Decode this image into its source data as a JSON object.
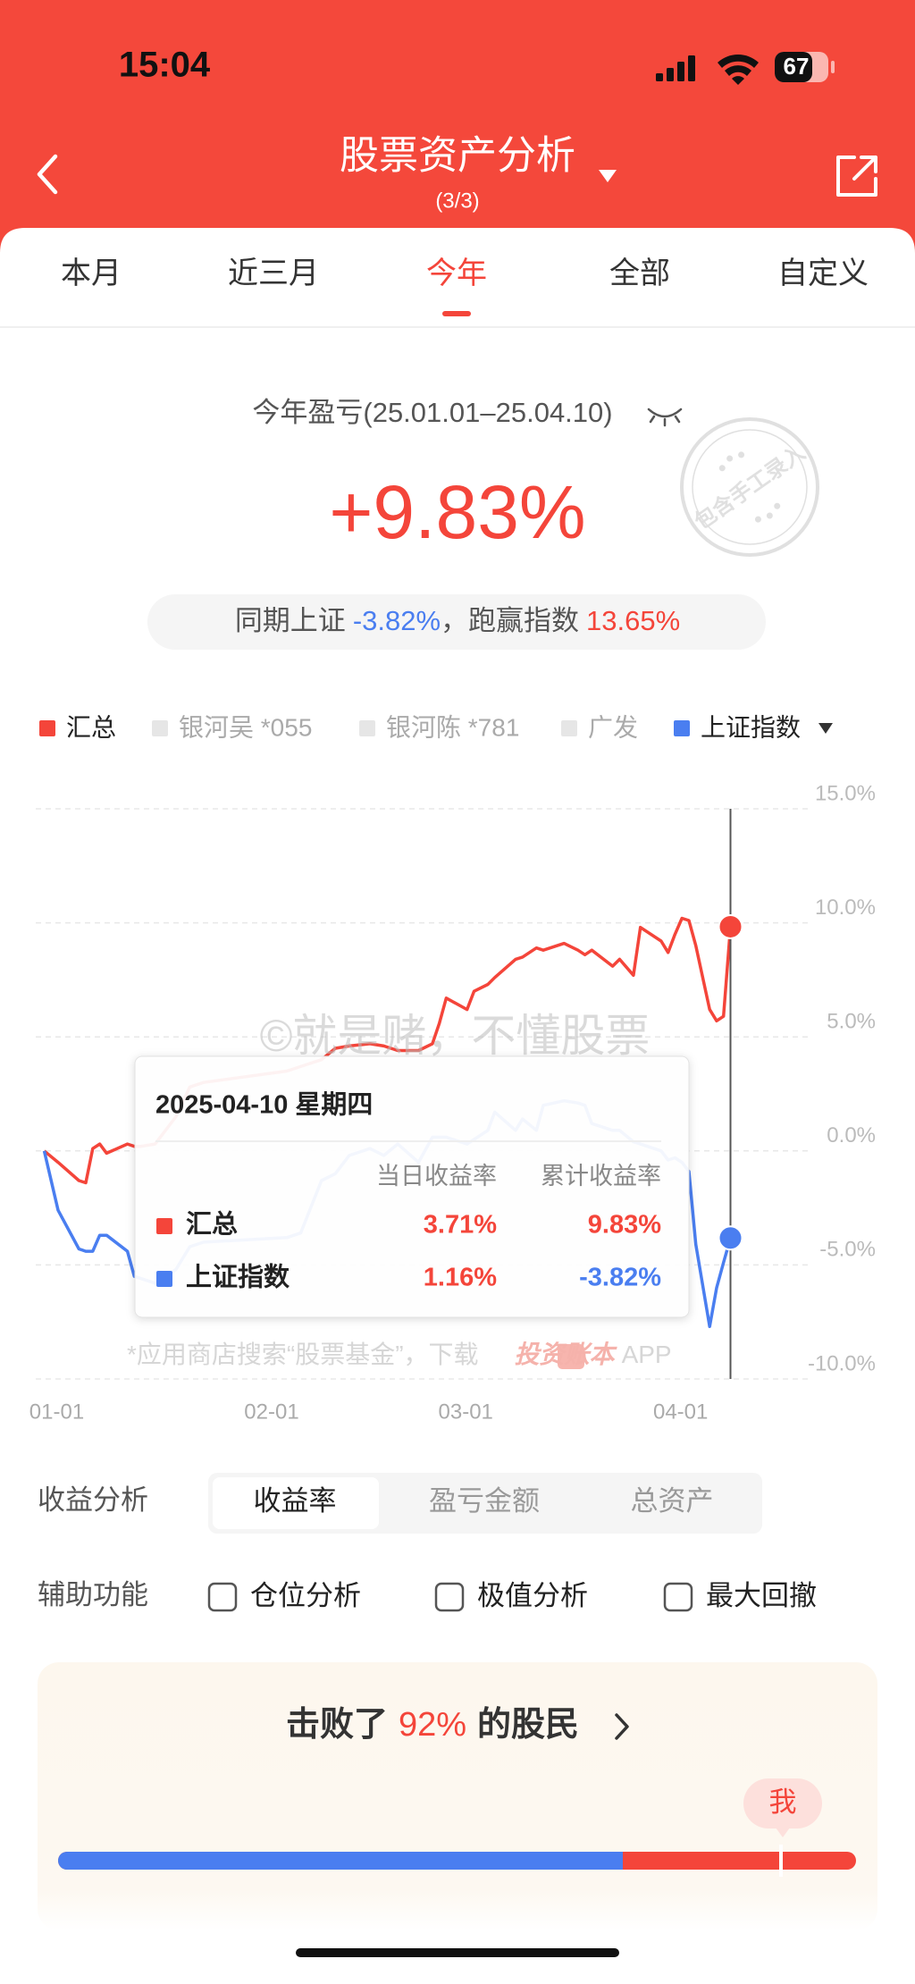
{
  "status_bar": {
    "time": "15:04",
    "battery": "67"
  },
  "header": {
    "title": "股票资产分析",
    "page": "(3/3)"
  },
  "tabs": {
    "items": [
      "本月",
      "近三月",
      "今年",
      "全部",
      "自定义"
    ],
    "active": 2
  },
  "summary": {
    "period_label": "今年盈亏(25.01.01–25.04.10)",
    "return": "+9.83%",
    "stamp": "包含手工录入",
    "compare": {
      "prefix": "同期上证",
      "index_return": "-3.82%",
      "middle": "，跑赢指数",
      "excess": "13.65%"
    }
  },
  "chart_data": {
    "type": "line",
    "x": [
      "01-01",
      "01-03",
      "01-06",
      "01-07",
      "01-08",
      "01-09",
      "01-10",
      "01-13",
      "01-14",
      "01-15",
      "01-17",
      "01-20",
      "01-22",
      "01-24",
      "02-05",
      "02-07",
      "02-10",
      "02-12",
      "02-14",
      "02-17",
      "02-19",
      "02-21",
      "02-24",
      "02-26",
      "02-27",
      "02-28",
      "03-03",
      "03-04",
      "03-06",
      "03-07",
      "03-10",
      "03-11",
      "03-13",
      "03-14",
      "03-17",
      "03-19",
      "03-20",
      "03-21",
      "03-24",
      "03-25",
      "03-27",
      "03-28",
      "03-31",
      "04-01",
      "04-02",
      "04-03",
      "04-04",
      "04-05",
      "04-07",
      "04-08",
      "04-09",
      "04-10"
    ],
    "xlim": [
      "01-01",
      "04-10"
    ],
    "xticks": [
      "01-01",
      "02-01",
      "03-01",
      "04-01"
    ],
    "series": [
      {
        "name": "汇总",
        "color": "#f4453a",
        "values": [
          0,
          -0.5,
          -1.3,
          -1.4,
          0.1,
          0.3,
          -0.1,
          0.3,
          0.2,
          0.2,
          0.3,
          1.5,
          2.8,
          3.0,
          3.5,
          3.7,
          4.0,
          4.5,
          4.6,
          4.7,
          4.6,
          4.4,
          4.4,
          4.7,
          5.6,
          6.7,
          6.2,
          7.0,
          7.3,
          7.6,
          8.4,
          8.5,
          8.9,
          8.8,
          9.1,
          8.8,
          8.6,
          8.8,
          8.1,
          8.4,
          7.7,
          9.8,
          9.2,
          8.7,
          9.5,
          10.2,
          10.1,
          9.0,
          6.2,
          5.7,
          5.9,
          9.83
        ]
      },
      {
        "name": "上证指数",
        "color": "#4a7ef0",
        "values": [
          0,
          -2.6,
          -4.3,
          -4.4,
          -4.4,
          -3.7,
          -3.7,
          -4.4,
          -5.5,
          -5.6,
          -5.8,
          -5.2,
          -4.2,
          -4.0,
          -3.8,
          -3.6,
          -1.3,
          -1.0,
          -0.2,
          0.1,
          -0.2,
          0.3,
          -0.5,
          0.6,
          0.6,
          0.6,
          0.3,
          0.5,
          0.9,
          1.7,
          0.9,
          1.4,
          0.9,
          2.0,
          2.2,
          2.1,
          2.0,
          1.2,
          0.9,
          0.9,
          0.4,
          0.3,
          0,
          -0.4,
          -0.3,
          -0.5,
          -0.9,
          -4.1,
          -7.7,
          -6.0,
          -4.9,
          -3.82
        ]
      }
    ],
    "hidden_series": [
      {
        "name": "银河吴 *055"
      },
      {
        "name": "银河陈 *781"
      },
      {
        "name": "广发"
      }
    ],
    "ylim": [
      -10,
      15
    ],
    "yticks": [
      {
        "value": 15,
        "label": "15.0%"
      },
      {
        "value": 10,
        "label": "10.0%"
      },
      {
        "value": 5,
        "label": "5.0%"
      },
      {
        "value": 0,
        "label": "0.0%"
      },
      {
        "value": -5,
        "label": "-5.0%"
      },
      {
        "value": -10,
        "label": "-10.0%"
      }
    ],
    "grid": true,
    "watermark": "©就是赌，不懂股票",
    "footnote": {
      "text": "*应用商店搜索“股票基金”，下载",
      "app_name": "投资账本",
      "suffix": "APP"
    }
  },
  "tooltip": {
    "date": "2025-04-10 星期四",
    "col_daily": "当日收益率",
    "col_cumulative": "累计收益率",
    "rows": [
      {
        "daily": "3.71%",
        "cumulative": "9.83%"
      },
      {
        "daily": "1.16%",
        "cumulative": "-3.82%"
      }
    ]
  },
  "analysis": {
    "label": "收益分析",
    "options": [
      "收益率",
      "盈亏金额",
      "总资产"
    ],
    "selected": 0
  },
  "aux": {
    "label": "辅助功能",
    "options": [
      "仓位分析",
      "极值分析",
      "最大回撤"
    ]
  },
  "rank": {
    "prefix": "击败了",
    "value": "92%",
    "suffix": "的股民",
    "me": "我"
  }
}
